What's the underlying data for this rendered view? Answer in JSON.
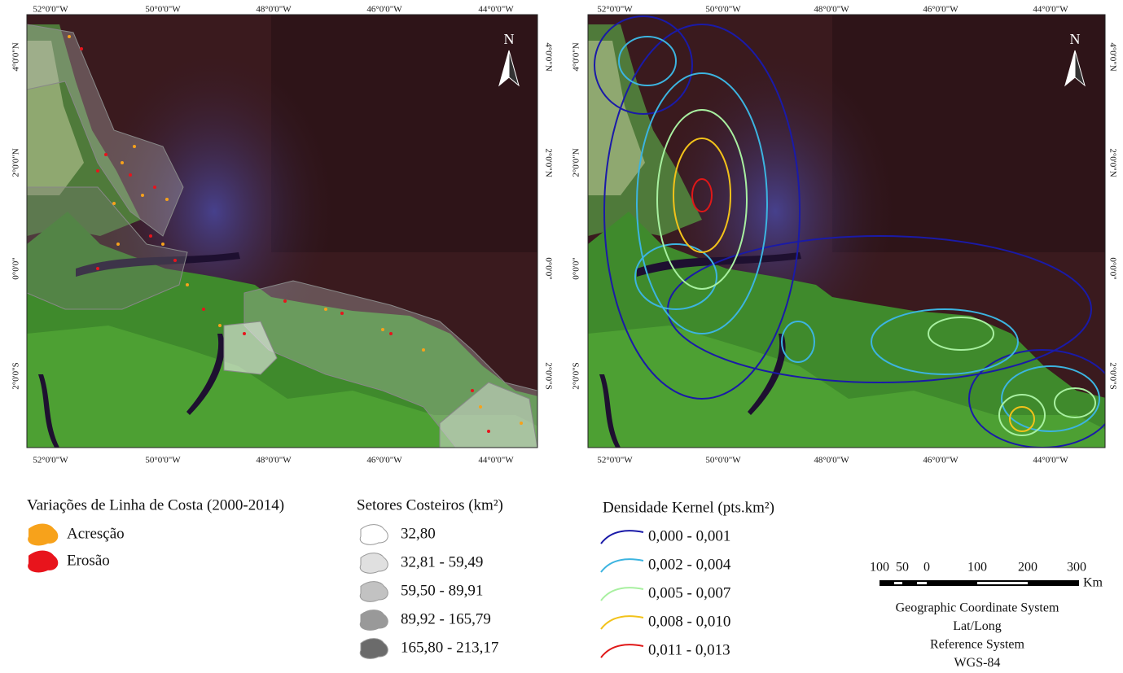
{
  "maps": [
    {
      "lon_labels": [
        "52°0'0\"W",
        "50°0'0\"W",
        "48°0'0\"W",
        "46°0'0\"W",
        "44°0'0\"W"
      ],
      "lat_labels": [
        "4°0'0\"N",
        "2°0'0\"N",
        "0°0'0\"",
        "2°0'0\"S"
      ],
      "north": "N"
    },
    {
      "lon_labels": [
        "52°0'0\"W",
        "50°0'0\"W",
        "48°0'0\"W",
        "46°0'0\"W",
        "44°0'0\"W"
      ],
      "lat_labels": [
        "4°0'0\"N",
        "2°0'0\"N",
        "0°0'0\"",
        "2°0'0\"S"
      ],
      "north": "N"
    }
  ],
  "legend_shoreline": {
    "title": "Variações de Linha de Costa (2000-2014)",
    "items": [
      {
        "label": "Acresção",
        "color": "#f7a21b"
      },
      {
        "label": "Erosão",
        "color": "#e8141c"
      }
    ]
  },
  "legend_sectors": {
    "title": "Setores Costeiros (km²)",
    "items": [
      {
        "label": "32,80",
        "color": "#ffffff"
      },
      {
        "label": "32,81 - 59,49",
        "color": "#e0e0e0"
      },
      {
        "label": "59,50 - 89,91",
        "color": "#c2c2c2"
      },
      {
        "label": "89,92 - 165,79",
        "color": "#999999"
      },
      {
        "label": "165,80 - 213,17",
        "color": "#6b6b6b"
      }
    ]
  },
  "legend_kernel": {
    "title": "Densidade Kernel (pts.km²)",
    "items": [
      {
        "label": "0,000 - 0,001",
        "color": "#1a1aa8"
      },
      {
        "label": "0,002 - 0,004",
        "color": "#3cb4e0"
      },
      {
        "label": "0,005 - 0,007",
        "color": "#a8f0a0"
      },
      {
        "label": "0,008 - 0,010",
        "color": "#f2c21a"
      },
      {
        "label": "0,011 - 0,013",
        "color": "#e01818"
      }
    ]
  },
  "scale_bar": {
    "ticks": [
      "100",
      "50",
      "0",
      "100",
      "200",
      "300"
    ],
    "unit": "Km"
  },
  "coordinate_system": [
    "Geographic Coordinate System",
    "Lat/Long",
    "Reference System",
    "WGS-84"
  ]
}
